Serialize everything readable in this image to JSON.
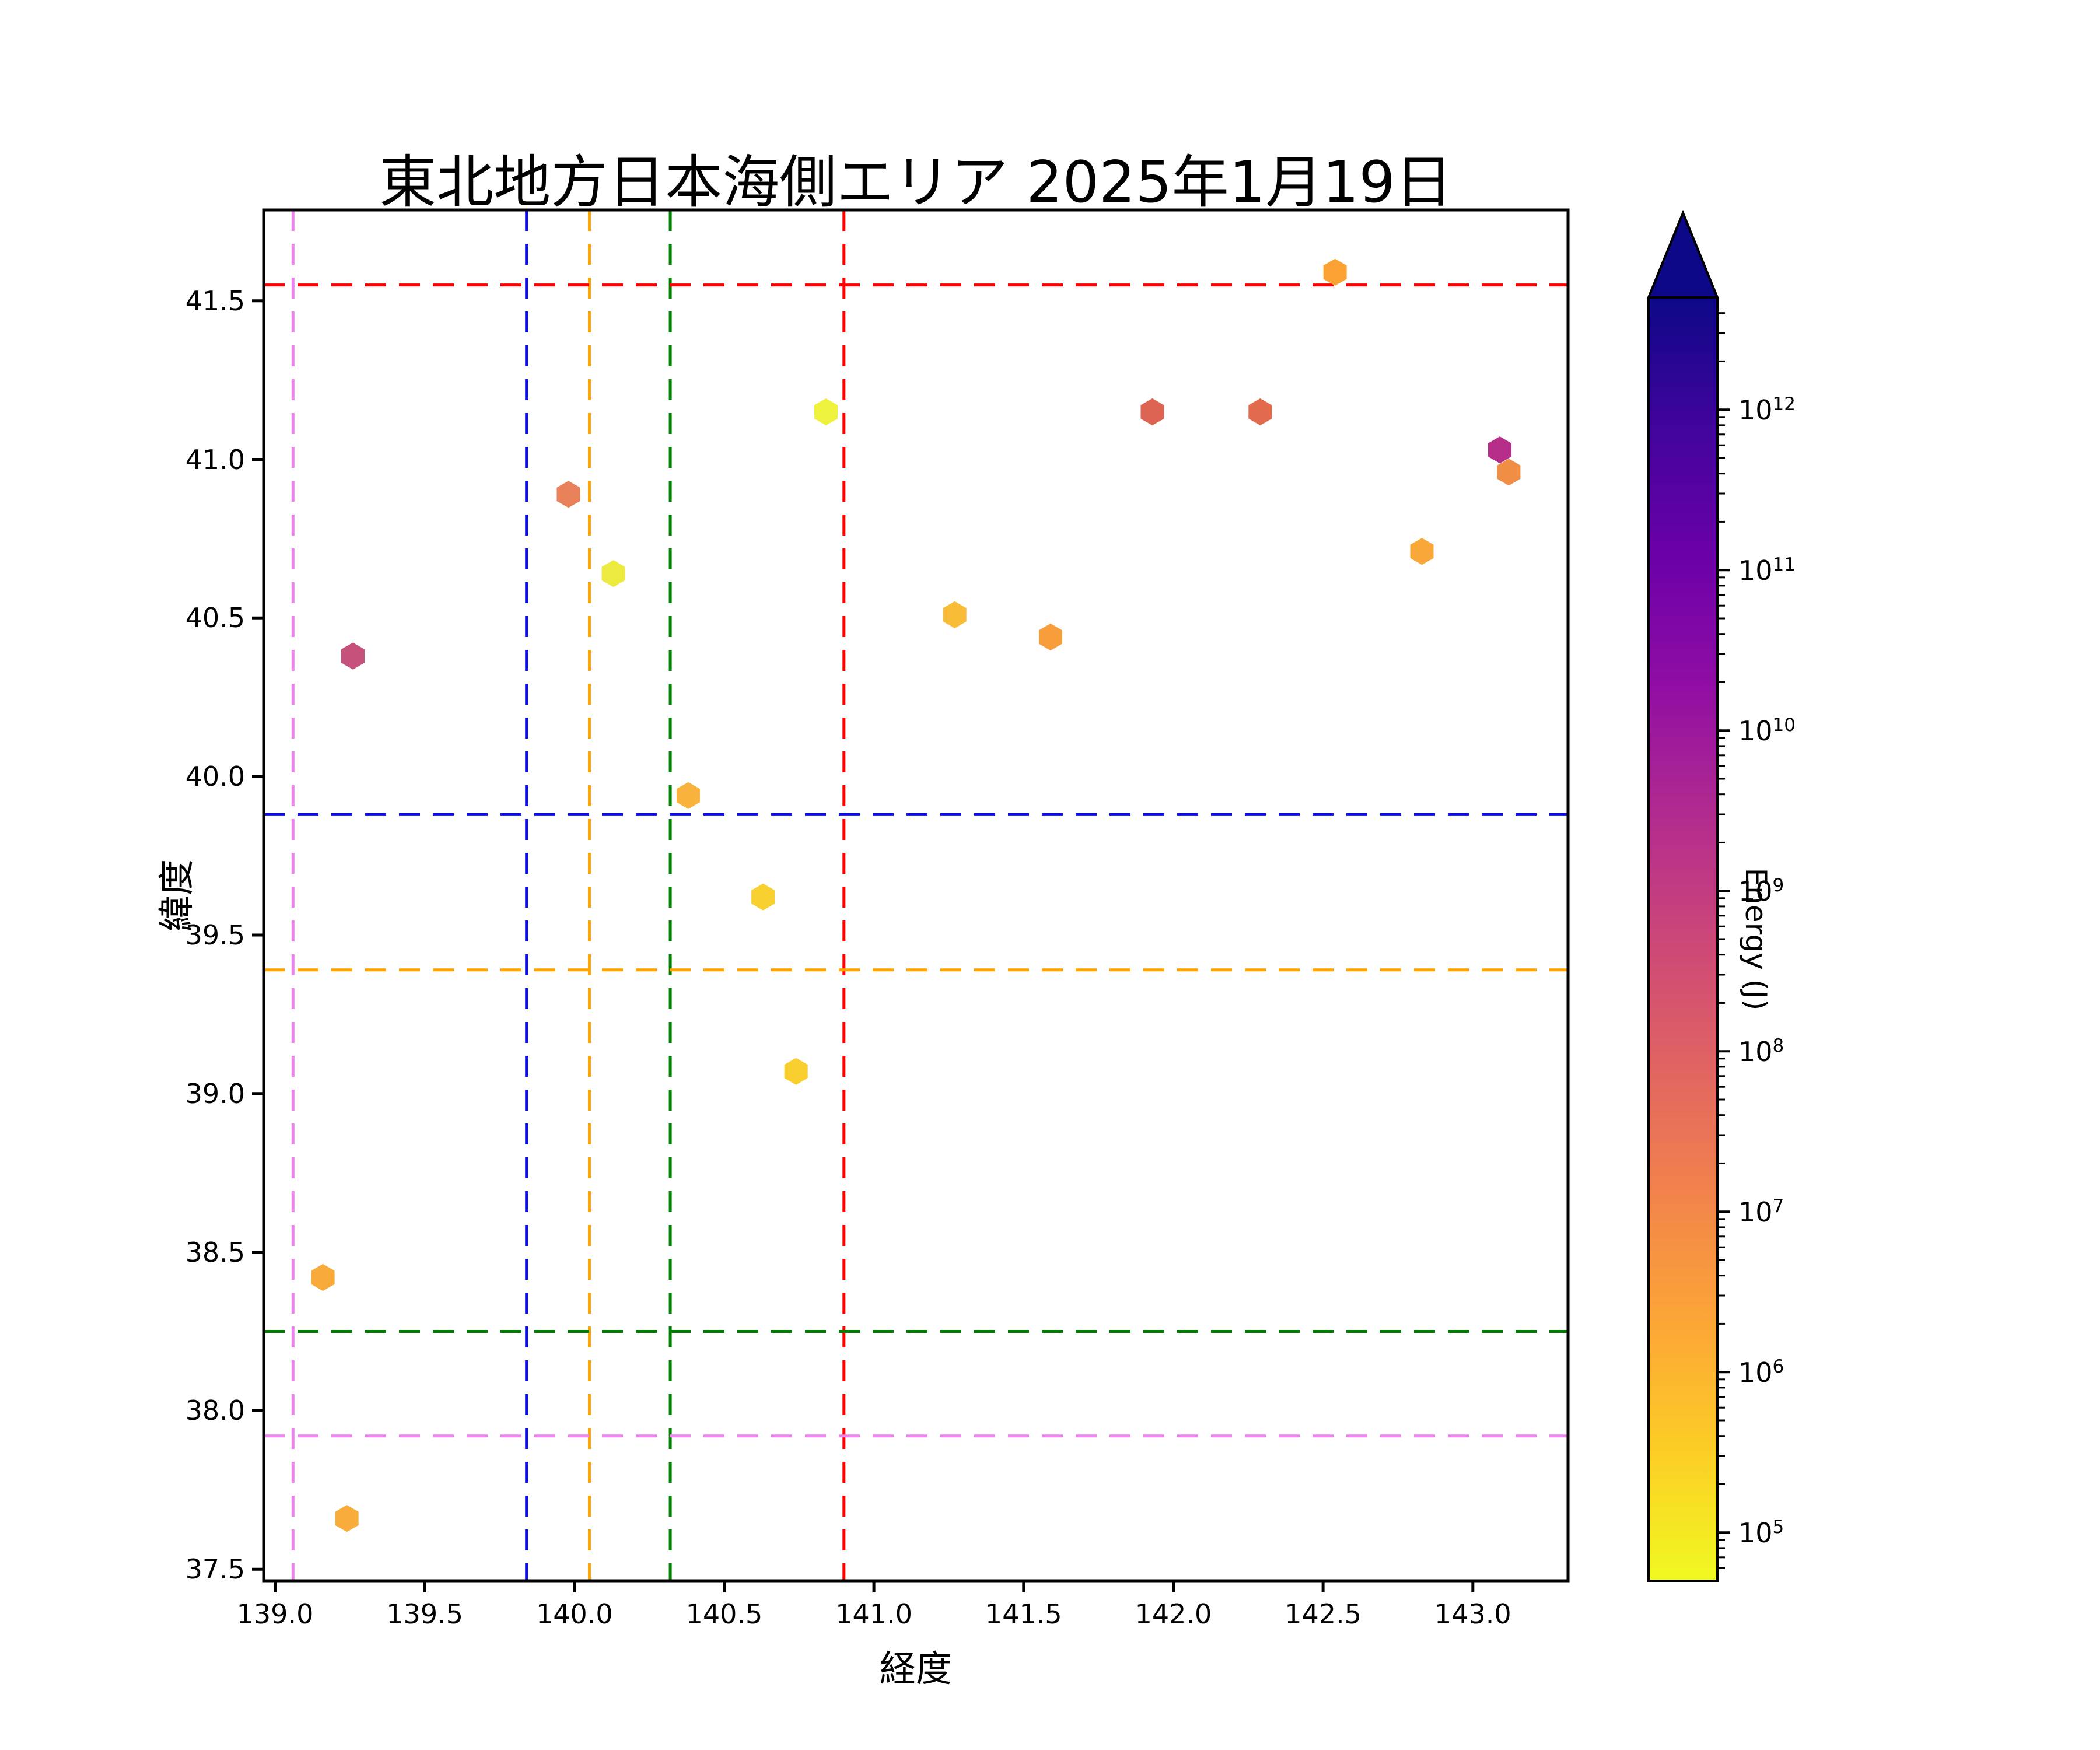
{
  "title": "東北地方日本海側エリア 2025年1月19日",
  "axes": {
    "xlabel": "経度",
    "ylabel": "緯度",
    "xlim": [
      138.962,
      143.318
    ],
    "ylim": [
      37.4635,
      41.7865
    ],
    "xticks": [
      139.0,
      139.5,
      140.0,
      140.5,
      141.0,
      141.5,
      142.0,
      142.5,
      143.0
    ],
    "yticks": [
      37.5,
      38.0,
      38.5,
      39.0,
      39.5,
      40.0,
      40.5,
      41.0,
      41.5
    ],
    "spine_color": "#000000",
    "background": "#ffffff"
  },
  "reference_lines": {
    "style": "dashed",
    "vertical": [
      {
        "name": "violet-vline",
        "color": "#ee82ee",
        "lon": 139.06
      },
      {
        "name": "blue-vline",
        "color": "#0d0dee",
        "lon": 139.84
      },
      {
        "name": "orange-vline",
        "color": "#ffa500",
        "lon": 140.05
      },
      {
        "name": "green-vline",
        "color": "#008000",
        "lon": 140.32
      },
      {
        "name": "red-vline",
        "color": "#ff0000",
        "lon": 140.9
      }
    ],
    "horizontal": [
      {
        "name": "red-hline",
        "color": "#ff0000",
        "lat": 41.55
      },
      {
        "name": "blue-hline",
        "color": "#0d0dee",
        "lat": 39.88
      },
      {
        "name": "orange-hline",
        "color": "#ffa500",
        "lat": 39.39
      },
      {
        "name": "green-hline",
        "color": "#008000",
        "lat": 38.25
      },
      {
        "name": "violet-hline",
        "color": "#ee82ee",
        "lat": 37.92
      }
    ]
  },
  "chart_data": {
    "type": "scatter",
    "marker": "hexagon",
    "title": "東北地方日本海側エリア 2025年1月19日",
    "xlabel": "経度",
    "ylabel": "緯度",
    "xlim": [
      138.962,
      143.318
    ],
    "ylim": [
      37.4635,
      41.7865
    ],
    "grid": false,
    "colormap": "plasma_r",
    "color_scale": {
      "label": "Energy (J)",
      "scale": "log",
      "vmin": 50000.0,
      "vmax": 5000000000000.0,
      "extend": "max"
    },
    "points": [
      {
        "lon": 139.24,
        "lat": 37.66,
        "energy_j": 1800000.0,
        "color": "#f8ac3c"
      },
      {
        "lon": 139.16,
        "lat": 38.42,
        "energy_j": 1800000.0,
        "color": "#f8aa3b"
      },
      {
        "lon": 139.26,
        "lat": 40.38,
        "energy_j": 600000000.0,
        "color": "#c5507c"
      },
      {
        "lon": 139.98,
        "lat": 40.89,
        "energy_j": 15000000.0,
        "color": "#e8815a"
      },
      {
        "lon": 140.13,
        "lat": 40.64,
        "energy_j": 120000.0,
        "color": "#ece93f"
      },
      {
        "lon": 140.38,
        "lat": 39.94,
        "energy_j": 1300000.0,
        "color": "#f9b23c"
      },
      {
        "lon": 140.63,
        "lat": 39.62,
        "energy_j": 350000.0,
        "color": "#f8d130"
      },
      {
        "lon": 140.74,
        "lat": 39.07,
        "energy_j": 350000.0,
        "color": "#f8cf2e"
      },
      {
        "lon": 140.84,
        "lat": 41.15,
        "energy_j": 80000.0,
        "color": "#eef23d"
      },
      {
        "lon": 141.27,
        "lat": 40.51,
        "energy_j": 900000.0,
        "color": "#f9bc37"
      },
      {
        "lon": 141.59,
        "lat": 40.44,
        "energy_j": 3200000.0,
        "color": "#f79d3c"
      },
      {
        "lon": 141.93,
        "lat": 41.15,
        "energy_j": 60000000.0,
        "color": "#dd6453"
      },
      {
        "lon": 142.29,
        "lat": 41.15,
        "energy_j": 43000000.0,
        "color": "#e26a4d"
      },
      {
        "lon": 142.54,
        "lat": 41.59,
        "energy_j": 2500000.0,
        "color": "#f9a233"
      },
      {
        "lon": 142.83,
        "lat": 40.71,
        "energy_j": 1900000.0,
        "color": "#f7a838"
      },
      {
        "lon": 143.09,
        "lat": 41.03,
        "energy_j": 2200000000.0,
        "color": "#b52f8a"
      },
      {
        "lon": 143.12,
        "lat": 40.96,
        "energy_j": 6800000.0,
        "color": "#ef8e44"
      }
    ]
  },
  "colorbar": {
    "label": "Energy (J)",
    "tick_exponents": [
      12,
      11,
      10,
      9,
      8,
      7,
      6,
      5
    ],
    "tick_prefix": "10",
    "extend": "max",
    "gradient_top_to_bottom": [
      "#0d0887",
      "#41049d",
      "#6a00a8",
      "#8f0da4",
      "#b12a90",
      "#cc4778",
      "#e16462",
      "#f2844b",
      "#fca636",
      "#fcce25",
      "#f0f921"
    ]
  }
}
